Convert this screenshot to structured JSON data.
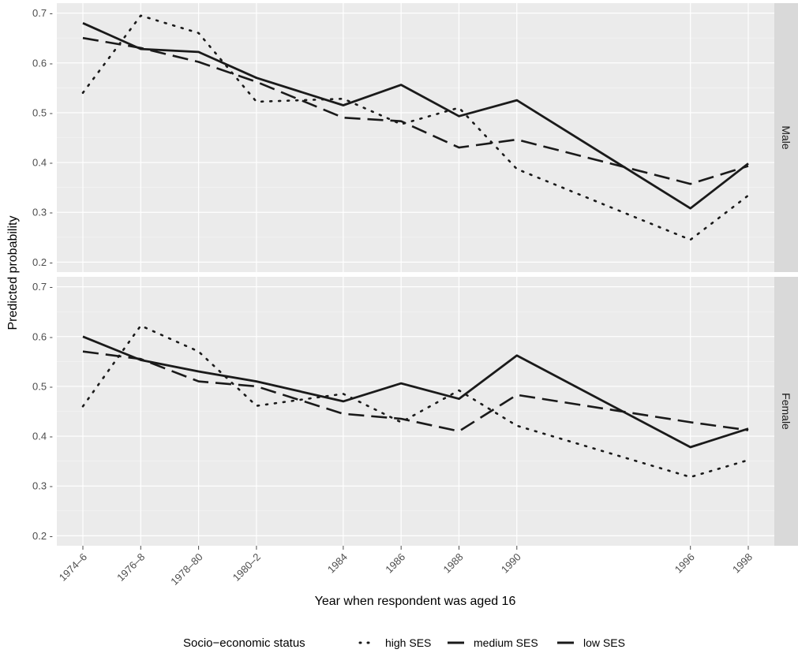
{
  "chart_data": {
    "type": "line",
    "xlabel": "Year when respondent was aged 16",
    "ylabel": "Predicted probability",
    "x": [
      1975,
      1977,
      1979,
      1981,
      1984,
      1986,
      1988,
      1990,
      1996,
      1998
    ],
    "categories": [
      "1974–6",
      "1976–8",
      "1978–80",
      "1980–2",
      "1984",
      "1986",
      "1988",
      "1990",
      "1996",
      "1998"
    ],
    "xlim": [
      1974.1,
      1998.9
    ],
    "ylim": [
      0.18,
      0.72
    ],
    "yticks": [
      0.2,
      0.3,
      0.4,
      0.5,
      0.6,
      0.7
    ],
    "ytick_labels": [
      "0.2 -",
      "0.3 -",
      "0.4 -",
      "0.5 -",
      "0.6 -",
      "0.7 -"
    ],
    "grid": true,
    "panel_background": "#ebebeb",
    "strip_background": "#d9d9d9",
    "line_color": "#1a1a1a",
    "legend": {
      "title": "Socio−economic status",
      "position": "bottom",
      "entries": [
        {
          "label": "high SES",
          "style": "dotted"
        },
        {
          "label": "medium SES",
          "style": "dashed"
        },
        {
          "label": "low SES",
          "style": "solid"
        }
      ]
    },
    "panels": [
      {
        "label": "Male",
        "series": [
          {
            "label": "high SES",
            "style": "dotted",
            "values": [
              0.54,
              0.695,
              0.66,
              0.522,
              0.528,
              0.477,
              0.51,
              0.387,
              0.245,
              0.334
            ]
          },
          {
            "label": "medium SES",
            "style": "dashed",
            "values": [
              0.65,
              0.63,
              0.602,
              0.562,
              0.49,
              0.483,
              0.43,
              0.446,
              0.357,
              0.393
            ]
          },
          {
            "label": "low SES",
            "style": "solid",
            "values": [
              0.68,
              0.628,
              0.622,
              0.57,
              0.515,
              0.556,
              0.493,
              0.525,
              0.308,
              0.398
            ]
          }
        ]
      },
      {
        "label": "Female",
        "series": [
          {
            "label": "high SES",
            "style": "dotted",
            "values": [
              0.46,
              0.622,
              0.57,
              0.461,
              0.485,
              0.428,
              0.492,
              0.421,
              0.318,
              0.352
            ]
          },
          {
            "label": "medium SES",
            "style": "dashed",
            "values": [
              0.57,
              0.555,
              0.51,
              0.5,
              0.445,
              0.435,
              0.41,
              0.483,
              0.428,
              0.412
            ]
          },
          {
            "label": "low SES",
            "style": "solid",
            "values": [
              0.6,
              0.553,
              0.53,
              0.51,
              0.47,
              0.506,
              0.475,
              0.562,
              0.378,
              0.415
            ]
          }
        ]
      }
    ]
  }
}
